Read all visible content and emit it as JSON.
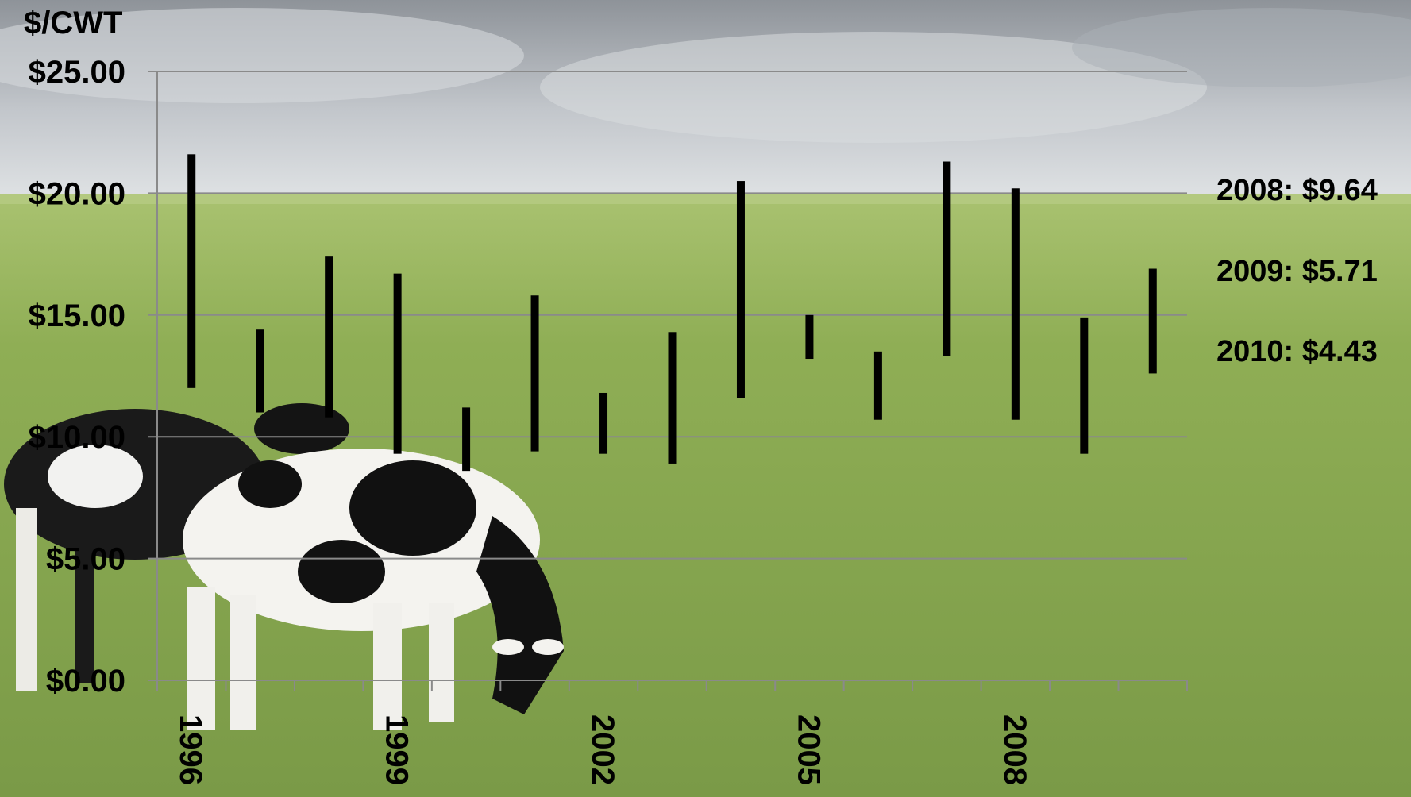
{
  "chart_data": {
    "type": "range-bar",
    "unit_label": "$/CWT",
    "ylim": [
      0,
      25
    ],
    "y_ticks": [
      "$0.00",
      "$5.00",
      "$10.00",
      "$15.00",
      "$20.00",
      "$25.00"
    ],
    "y_tick_values": [
      0,
      5,
      10,
      15,
      20,
      25
    ],
    "x": [
      1996,
      1997,
      1998,
      1999,
      2000,
      2001,
      2002,
      2003,
      2004,
      2005,
      2006,
      2007,
      2008,
      2009,
      2010
    ],
    "x_tick_labels": [
      "1996",
      "1999",
      "2002",
      "2005",
      "2008"
    ],
    "x_tick_years": [
      1996,
      1999,
      2002,
      2005,
      2008
    ],
    "low": [
      12.0,
      11.0,
      10.8,
      9.3,
      8.6,
      9.4,
      9.3,
      8.9,
      11.6,
      13.2,
      10.7,
      13.3,
      10.7,
      9.3,
      12.6
    ],
    "high": [
      21.6,
      14.4,
      17.4,
      16.7,
      11.2,
      15.8,
      11.8,
      14.3,
      20.5,
      15.0,
      13.5,
      21.3,
      20.2,
      14.9,
      16.9
    ],
    "grid": true,
    "annotations": [
      "2008: $9.64",
      "2009: $5.71",
      "2010: $4.43"
    ]
  }
}
